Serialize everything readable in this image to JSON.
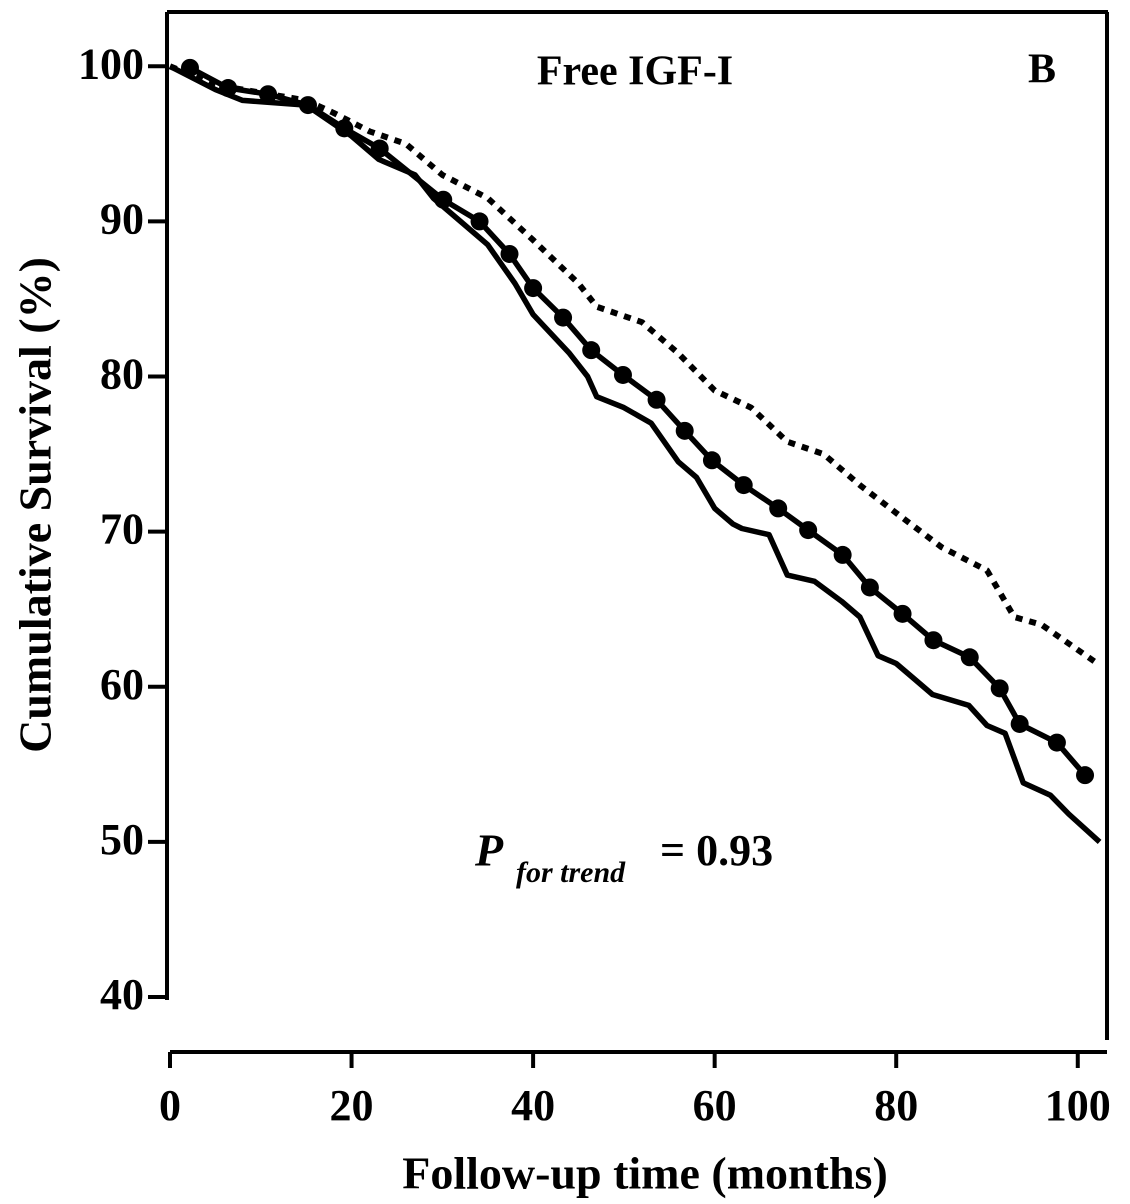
{
  "chart_data": {
    "type": "line",
    "title": "Free IGF-I",
    "panel_label": "B",
    "annotation": {
      "symbol": "P",
      "subscript": "for trend",
      "text": "= 0.93"
    },
    "xlabel": "Follow-up time (months)",
    "ylabel": "Cumulative Survival (%)",
    "xlim": [
      0,
      103
    ],
    "xticks": [
      0,
      20,
      40,
      60,
      80,
      100
    ],
    "ylim": [
      40,
      103.5
    ],
    "yticks": [
      40,
      50,
      60,
      70,
      80,
      90,
      100
    ],
    "grid": false,
    "series": [
      {
        "color": "#000000",
        "dashed": true,
        "markers": false,
        "x": [
          0,
          5,
          10,
          15,
          18,
          22,
          26,
          30,
          35,
          40,
          45,
          47,
          52,
          56,
          60,
          64,
          68,
          72,
          76,
          80,
          85,
          90,
          93,
          96,
          102.4
        ],
        "values": [
          100,
          98.8,
          98.3,
          97.8,
          97,
          95.8,
          95,
          93,
          91.5,
          88.8,
          86,
          84.5,
          83.5,
          81.5,
          79.1,
          78,
          75.8,
          75,
          73,
          71.2,
          69,
          67.5,
          64.5,
          64,
          61.4
        ]
      },
      {
        "color": "#000000",
        "dashed": false,
        "markers": true,
        "x": [
          2.2,
          6.4,
          10.8,
          15.2,
          19.2,
          23.1,
          30.1,
          34.1,
          37.4,
          40,
          43.3,
          46.4,
          49.9,
          53.6,
          56.7,
          59.7,
          63.2,
          67,
          70.3,
          74.1,
          77.1,
          80.7,
          84.1,
          88.1,
          91.4,
          93.6,
          97.7,
          100.8
        ],
        "values": [
          99.9,
          98.6,
          98.2,
          97.5,
          96,
          94.7,
          91.4,
          90,
          87.9,
          85.7,
          83.8,
          81.7,
          80.1,
          78.5,
          76.5,
          74.6,
          73,
          71.5,
          70.1,
          68.5,
          66.4,
          64.7,
          63,
          61.9,
          59.9,
          57.6,
          56.4,
          54.3
        ]
      },
      {
        "color": "#000000",
        "dashed": false,
        "markers": false,
        "x": [
          0,
          5,
          8,
          15,
          20,
          23,
          27,
          29,
          32,
          35,
          38,
          40,
          44,
          46,
          47,
          50,
          53,
          56,
          58,
          60,
          62,
          63,
          66,
          68,
          71,
          74,
          76,
          78,
          80,
          82,
          84,
          88,
          90,
          92,
          94,
          97,
          99,
          102.4
        ],
        "values": [
          100,
          98.5,
          97.8,
          97.5,
          95.5,
          94,
          93,
          91.5,
          90,
          88.5,
          86,
          84,
          81.5,
          80,
          78.7,
          78,
          77,
          74.5,
          73.5,
          71.5,
          70.5,
          70.2,
          69.8,
          67.2,
          66.8,
          65.5,
          64.5,
          62,
          61.5,
          60.5,
          59.5,
          58.8,
          57.5,
          57,
          53.8,
          53,
          51.8,
          50
        ]
      }
    ]
  }
}
